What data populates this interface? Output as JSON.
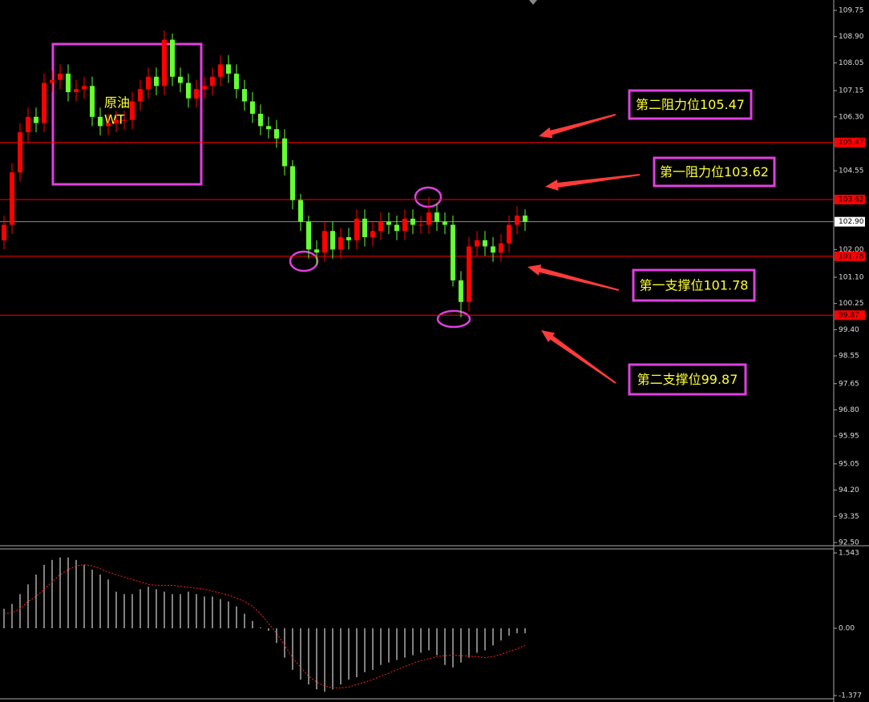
{
  "chart_data": [
    {
      "type": "candlestick",
      "open": [
        102.3,
        102.8,
        104.5,
        105.8,
        106.3,
        106.1,
        107.4,
        107.5,
        107.7,
        107.1,
        107.2,
        107.3,
        106.3,
        106.0,
        106.1,
        106.2,
        106.2,
        106.8,
        107.2,
        107.6,
        107.3,
        108.8,
        107.6,
        107.4,
        106.9,
        107.2,
        107.3,
        107.6,
        108.0,
        107.7,
        107.2,
        106.8,
        106.4,
        106.0,
        105.9,
        105.6,
        104.7,
        103.6,
        102.9,
        102.0,
        101.9,
        102.6,
        102.0,
        102.4,
        102.3,
        103.0,
        102.4,
        102.6,
        102.9,
        102.8,
        102.6,
        103.0,
        102.8,
        102.8,
        103.2,
        102.9,
        102.8,
        101.0,
        100.3,
        102.1,
        102.3,
        102.1,
        101.9,
        102.2,
        102.8,
        103.1
      ],
      "high": [
        103.1,
        104.8,
        106.1,
        106.6,
        106.6,
        107.7,
        107.8,
        108.0,
        108.0,
        107.5,
        107.6,
        107.6,
        106.6,
        106.4,
        106.5,
        106.5,
        107.1,
        107.5,
        107.9,
        107.9,
        109.1,
        109.0,
        107.9,
        107.7,
        107.5,
        107.6,
        107.9,
        108.3,
        108.3,
        108.0,
        107.5,
        107.1,
        106.7,
        106.3,
        106.2,
        105.9,
        104.9,
        103.8,
        103.1,
        102.3,
        102.9,
        102.9,
        102.7,
        102.7,
        103.3,
        103.3,
        102.9,
        103.2,
        103.2,
        103.1,
        103.3,
        103.3,
        103.1,
        103.7,
        103.5,
        103.2,
        103.1,
        101.3,
        102.4,
        102.6,
        102.6,
        102.4,
        102.5,
        103.1,
        103.4,
        103.3
      ],
      "low": [
        102.0,
        102.5,
        104.2,
        105.5,
        105.8,
        105.8,
        107.1,
        107.2,
        106.8,
        106.8,
        106.9,
        106.0,
        105.7,
        105.7,
        105.8,
        105.9,
        105.9,
        106.5,
        106.9,
        107.0,
        107.0,
        107.3,
        107.1,
        106.6,
        106.6,
        106.9,
        107.0,
        107.3,
        107.4,
        106.9,
        106.5,
        106.1,
        105.7,
        105.6,
        105.3,
        104.4,
        103.3,
        102.6,
        101.7,
        101.5,
        101.6,
        101.7,
        101.7,
        102.0,
        102.0,
        102.1,
        102.1,
        102.3,
        102.5,
        102.3,
        102.3,
        102.5,
        102.5,
        102.5,
        102.6,
        102.5,
        100.8,
        99.8,
        100.0,
        101.8,
        101.8,
        101.6,
        101.6,
        101.9,
        102.5,
        102.6
      ],
      "close": [
        102.8,
        104.5,
        105.8,
        106.3,
        106.1,
        107.4,
        107.5,
        107.7,
        107.1,
        107.2,
        107.3,
        106.3,
        106.0,
        106.1,
        106.2,
        106.2,
        106.8,
        107.2,
        107.6,
        107.3,
        108.8,
        107.6,
        107.4,
        106.9,
        107.2,
        107.3,
        107.6,
        108.0,
        107.7,
        107.2,
        106.8,
        106.4,
        106.0,
        105.9,
        105.6,
        104.7,
        103.6,
        102.9,
        102.0,
        101.9,
        102.6,
        102.0,
        102.4,
        102.3,
        103.0,
        102.4,
        102.6,
        102.9,
        102.8,
        102.6,
        103.0,
        102.8,
        102.8,
        103.2,
        102.9,
        102.8,
        101.0,
        100.3,
        102.1,
        102.3,
        102.1,
        101.9,
        102.2,
        102.8,
        103.1,
        102.9
      ],
      "up_color": "#ff0000",
      "down_color": "#66ff33",
      "level_color": "#ff0000",
      "price_line_color": "#8c8c8c",
      "ylim": [
        92.5,
        109.75
      ],
      "yticks": [
        109.75,
        {
          "value": 108.9,
          "label": "108.90"
        },
        108.05,
        107.15,
        {
          "value": 106.3,
          "label": "106.30"
        },
        104.55,
        {
          "value": 102,
          "label": "102.00"
        },
        {
          "value": 101.1,
          "label": "101.10"
        },
        100.25,
        {
          "value": 99.4,
          "label": "99.40"
        },
        98.55,
        97.65,
        {
          "value": 96.8,
          "label": "96.80"
        },
        95.95,
        95.05,
        {
          "value": 94.2,
          "label": "94.20"
        },
        93.35,
        {
          "value": 92.5,
          "label": "92.50"
        }
      ],
      "levels": [
        105.47,
        103.62,
        101.78,
        99.87
      ],
      "price_line": {
        "value": 102.9,
        "label": "102.90"
      },
      "annotations": [
        "第二阻力位105.47",
        "第一阻力位103.62",
        "第一支撑位101.78",
        "第二支撑位99.87"
      ],
      "box_label": [
        "原油",
        "WT"
      ]
    },
    {
      "type": "macd",
      "values": [
        0.4,
        0.5,
        0.7,
        0.9,
        1.1,
        1.3,
        1.4,
        1.45,
        1.45,
        1.4,
        1.3,
        1.2,
        1.1,
        1.0,
        0.75,
        0.7,
        0.7,
        0.8,
        0.85,
        0.8,
        0.75,
        0.7,
        0.7,
        0.75,
        0.7,
        0.65,
        0.65,
        0.6,
        0.55,
        0.45,
        0.3,
        0.15,
        0.02,
        -0.05,
        -0.3,
        -0.6,
        -0.85,
        -1.05,
        -1.15,
        -1.25,
        -1.3,
        -1.25,
        -1.15,
        -1.05,
        -1.0,
        -0.9,
        -0.85,
        -0.75,
        -0.7,
        -0.65,
        -0.6,
        -0.55,
        -0.5,
        -0.45,
        -0.55,
        -0.75,
        -0.8,
        -0.7,
        -0.6,
        -0.5,
        -0.45,
        -0.35,
        -0.25,
        -0.15,
        -0.1,
        -0.1
      ],
      "line_values": [
        0.3,
        0.32,
        0.4,
        0.55,
        0.65,
        0.8,
        0.95,
        1.1,
        1.2,
        1.28,
        1.3,
        1.28,
        1.22,
        1.15,
        1.1,
        1.05,
        1.0,
        0.95,
        0.9,
        0.88,
        0.88,
        0.88,
        0.86,
        0.84,
        0.82,
        0.8,
        0.76,
        0.72,
        0.68,
        0.62,
        0.55,
        0.45,
        0.3,
        0.1,
        -0.1,
        -0.35,
        -0.6,
        -0.8,
        -0.98,
        -1.1,
        -1.18,
        -1.22,
        -1.22,
        -1.2,
        -1.15,
        -1.1,
        -1.05,
        -0.98,
        -0.92,
        -0.85,
        -0.78,
        -0.72,
        -0.66,
        -0.62,
        -0.58,
        -0.56,
        -0.55,
        -0.56,
        -0.57,
        -0.58,
        -0.6,
        -0.58,
        -0.53,
        -0.47,
        -0.42,
        -0.35
      ],
      "color": "#ffffff",
      "line_color": "#ff2020",
      "ylim": [
        -1.377,
        1.543
      ],
      "yticks": [
        1.543,
        {
          "value": 0,
          "label": "0.00"
        },
        -1.377
      ]
    }
  ]
}
